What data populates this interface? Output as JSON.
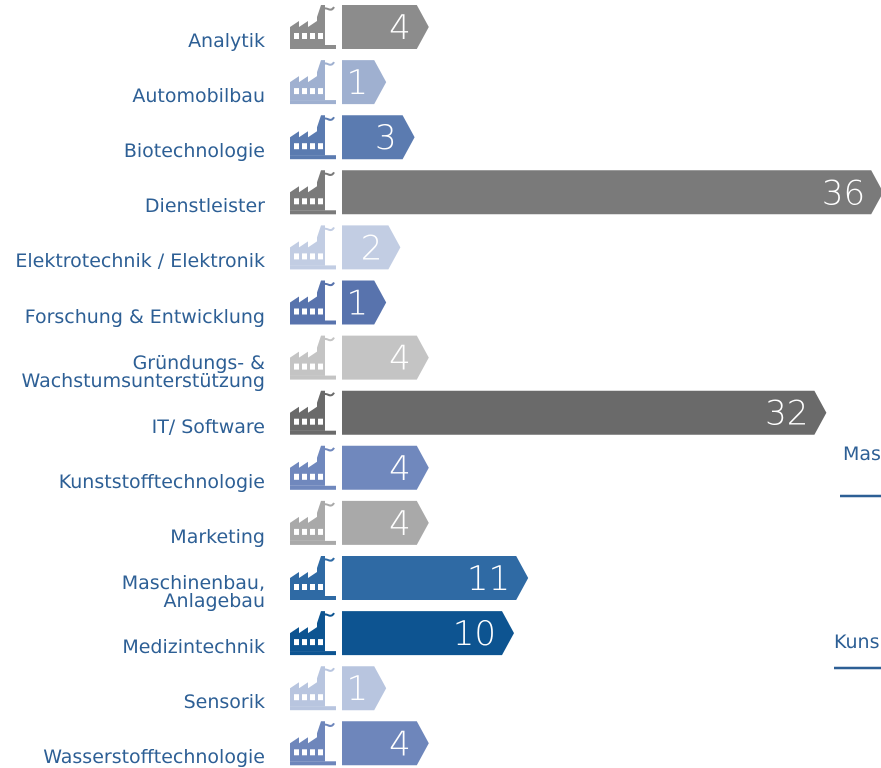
{
  "chart_data": {
    "type": "bar",
    "categories": [
      "Analytik",
      "Automobilbau",
      "Biotechnologie",
      "Dienstleister",
      "Elektrotechnik / Elektronik",
      "Forschung & Entwicklung",
      "Gründungs- &\nWachstumsunterstützung",
      "IT/ Software",
      "Kunststofftechnologie",
      "Marketing",
      "Maschinenbau,\nAnlagebau",
      "Medizintechnik",
      "Sensorik",
      "Wasserstofftechnologie"
    ],
    "values": [
      4,
      1,
      3,
      36,
      2,
      1,
      4,
      32,
      4,
      4,
      11,
      10,
      1,
      4
    ],
    "colors": [
      "#8c8c8c",
      "#9fb0d0",
      "#5b7bb0",
      "#7a7a7a",
      "#c2cde3",
      "#5873ad",
      "#c4c4c4",
      "#6a6a6a",
      "#7088bd",
      "#a9a9a9",
      "#2f6aa4",
      "#0d5491",
      "#b8c5df",
      "#6e86bb"
    ],
    "annotations": [
      "Mas",
      "Kuns"
    ]
  }
}
